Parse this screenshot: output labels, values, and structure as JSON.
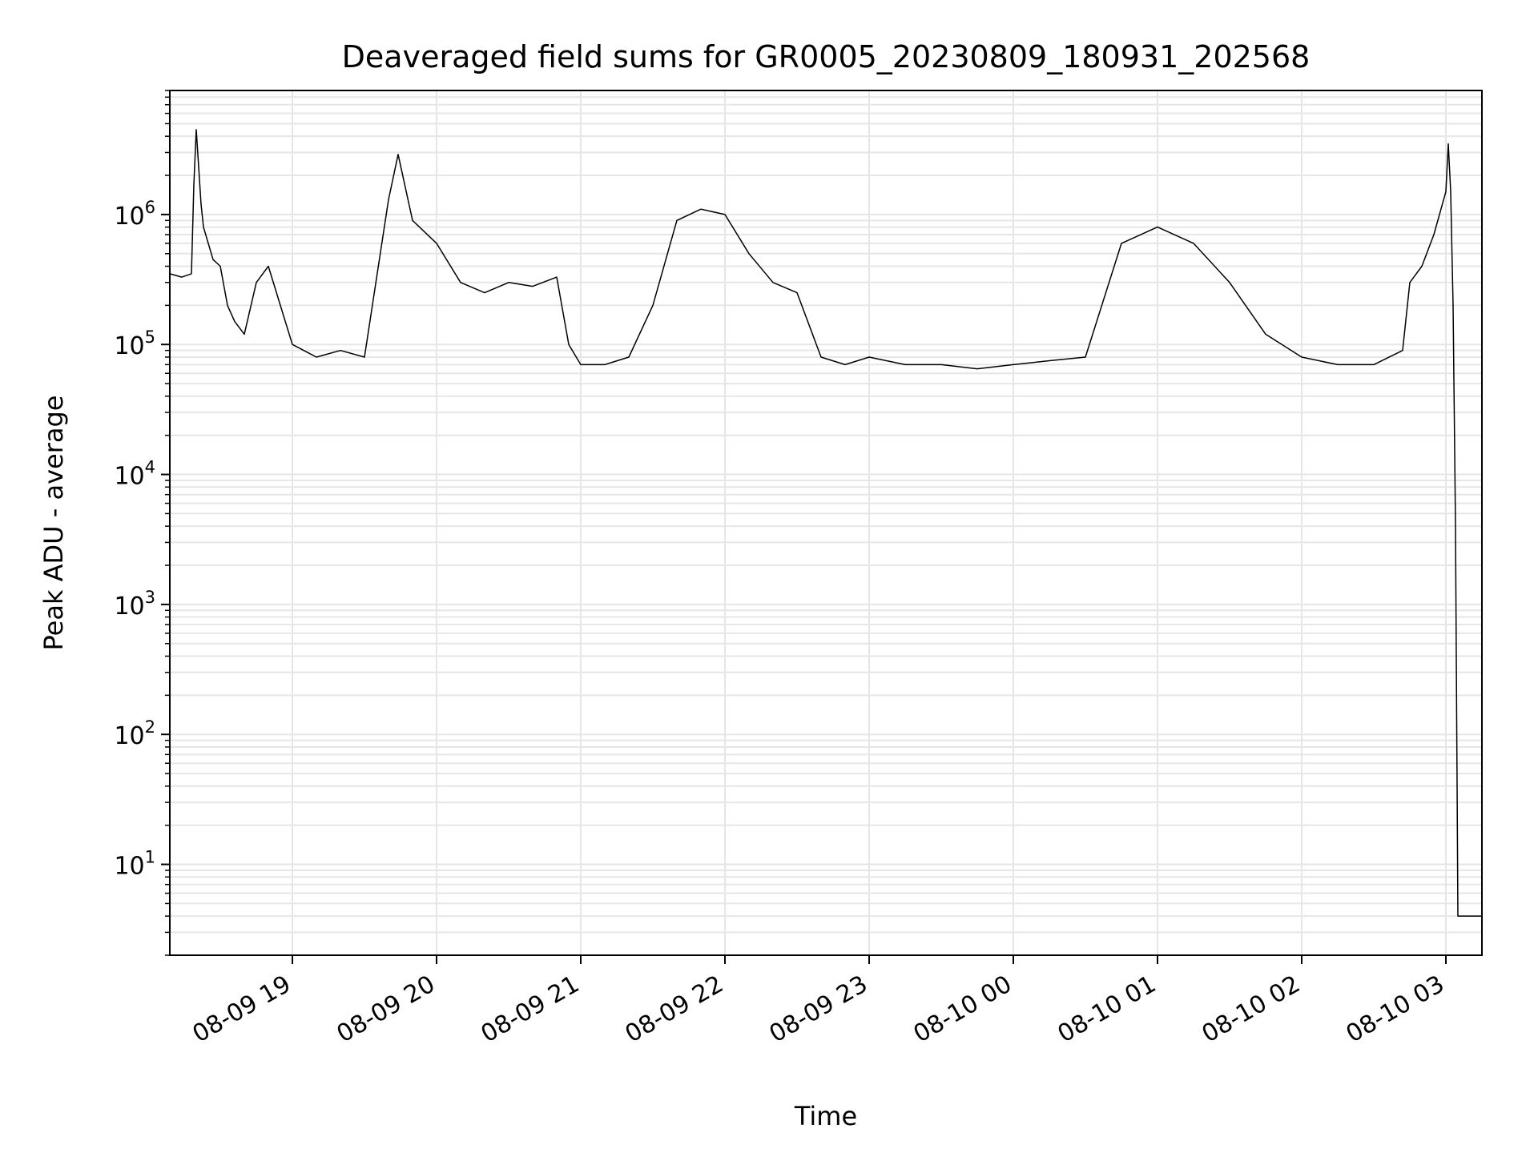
{
  "chart_data": {
    "type": "line",
    "title": "Deaveraged field sums for GR0005_20230809_180931_202568",
    "xlabel": "Time",
    "ylabel": "Peak ADU - average",
    "yscale": "log",
    "ylim": [
      2,
      9000000
    ],
    "xlim": [
      "2023-08-09 18:09",
      "2023-08-10 03:15"
    ],
    "grid": true,
    "line_color": "#000000",
    "grid_color": "#e6e6e6",
    "x_ticks": [
      {
        "t": "2023-08-09 19:00",
        "label": "08-09 19"
      },
      {
        "t": "2023-08-09 20:00",
        "label": "08-09 20"
      },
      {
        "t": "2023-08-09 21:00",
        "label": "08-09 21"
      },
      {
        "t": "2023-08-09 22:00",
        "label": "08-09 22"
      },
      {
        "t": "2023-08-09 23:00",
        "label": "08-09 23"
      },
      {
        "t": "2023-08-10 00:00",
        "label": "08-10 00"
      },
      {
        "t": "2023-08-10 01:00",
        "label": "08-10 01"
      },
      {
        "t": "2023-08-10 02:00",
        "label": "08-10 02"
      },
      {
        "t": "2023-08-10 03:00",
        "label": "08-10 03"
      }
    ],
    "y_ticks": [
      {
        "value": 10,
        "base": "10",
        "exp": "1"
      },
      {
        "value": 100,
        "base": "10",
        "exp": "2"
      },
      {
        "value": 1000,
        "base": "10",
        "exp": "3"
      },
      {
        "value": 10000,
        "base": "10",
        "exp": "4"
      },
      {
        "value": 100000,
        "base": "10",
        "exp": "5"
      },
      {
        "value": 1000000,
        "base": "10",
        "exp": "6"
      }
    ],
    "series": [
      {
        "x": [
          "2023-08-09 18:09",
          "2023-08-09 18:14",
          "2023-08-09 18:18",
          "2023-08-09 18:19",
          "2023-08-09 18:20",
          "2023-08-09 18:22",
          "2023-08-09 18:23",
          "2023-08-09 18:25",
          "2023-08-09 18:27",
          "2023-08-09 18:30",
          "2023-08-09 18:33",
          "2023-08-09 18:36",
          "2023-08-09 18:40",
          "2023-08-09 18:45",
          "2023-08-09 18:50",
          "2023-08-09 18:55",
          "2023-08-09 19:00",
          "2023-08-09 19:10",
          "2023-08-09 19:20",
          "2023-08-09 19:30",
          "2023-08-09 19:40",
          "2023-08-09 19:44",
          "2023-08-09 19:50",
          "2023-08-09 20:00",
          "2023-08-09 20:10",
          "2023-08-09 20:20",
          "2023-08-09 20:30",
          "2023-08-09 20:40",
          "2023-08-09 20:50",
          "2023-08-09 20:55",
          "2023-08-09 21:00",
          "2023-08-09 21:10",
          "2023-08-09 21:20",
          "2023-08-09 21:30",
          "2023-08-09 21:40",
          "2023-08-09 21:50",
          "2023-08-09 22:00",
          "2023-08-09 22:10",
          "2023-08-09 22:20",
          "2023-08-09 22:30",
          "2023-08-09 22:40",
          "2023-08-09 22:50",
          "2023-08-09 23:00",
          "2023-08-09 23:15",
          "2023-08-09 23:30",
          "2023-08-09 23:45",
          "2023-08-10 00:00",
          "2023-08-10 00:15",
          "2023-08-10 00:30",
          "2023-08-10 00:45",
          "2023-08-10 01:00",
          "2023-08-10 01:15",
          "2023-08-10 01:30",
          "2023-08-10 01:45",
          "2023-08-10 02:00",
          "2023-08-10 02:15",
          "2023-08-10 02:30",
          "2023-08-10 02:42",
          "2023-08-10 02:45",
          "2023-08-10 02:50",
          "2023-08-10 02:55",
          "2023-08-10 03:00",
          "2023-08-10 03:01",
          "2023-08-10 03:02",
          "2023-08-10 03:03",
          "2023-08-10 03:04",
          "2023-08-10 03:05",
          "2023-08-10 03:07",
          "2023-08-10 03:15"
        ],
        "y": [
          350000,
          330000,
          350000,
          1700000,
          4500000,
          1200000,
          800000,
          600000,
          450000,
          400000,
          200000,
          150000,
          120000,
          300000,
          400000,
          200000,
          100000,
          80000,
          90000,
          80000,
          1300000,
          2900000,
          900000,
          600000,
          300000,
          250000,
          300000,
          280000,
          330000,
          100000,
          70000,
          70000,
          80000,
          200000,
          900000,
          1100000,
          1000000,
          500000,
          300000,
          250000,
          80000,
          70000,
          80000,
          70000,
          70000,
          65000,
          70000,
          75000,
          80000,
          600000,
          800000,
          600000,
          300000,
          120000,
          80000,
          70000,
          70000,
          90000,
          300000,
          400000,
          700000,
          1500000,
          3500000,
          1500000,
          200000,
          4000,
          4,
          4,
          4
        ]
      }
    ]
  }
}
